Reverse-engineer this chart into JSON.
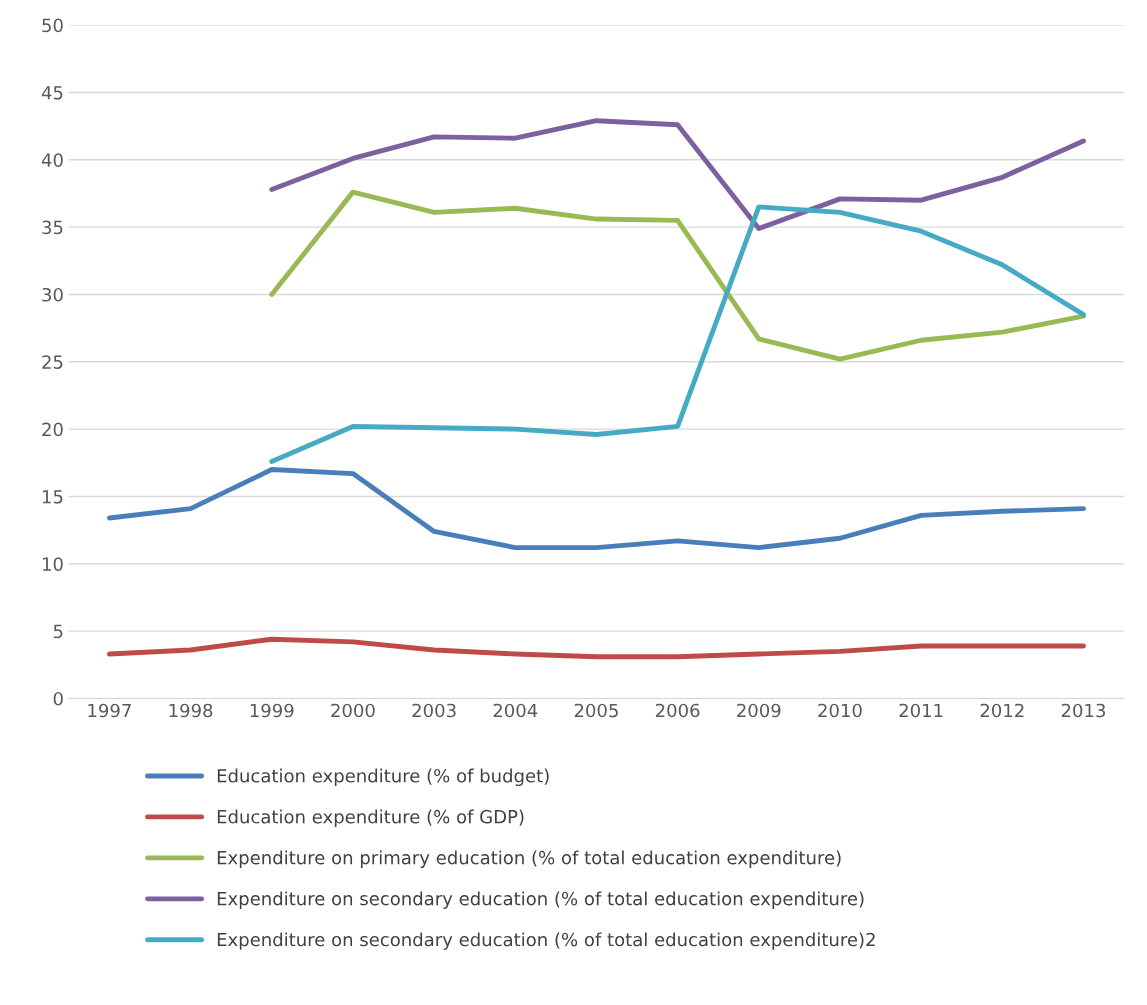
{
  "chart_data": {
    "type": "line",
    "categories": [
      "1997",
      "1998",
      "1999",
      "2000",
      "2003",
      "2004",
      "2005",
      "2006",
      "2009",
      "2010",
      "2011",
      "2012",
      "2013"
    ],
    "series": [
      {
        "name": "Education expenditure (% of budget)",
        "color": "#4a7ebb",
        "values": [
          13.4,
          14.1,
          17.0,
          16.7,
          12.4,
          11.2,
          11.2,
          11.7,
          11.2,
          11.9,
          13.6,
          13.9,
          14.1
        ]
      },
      {
        "name": "Education expenditure (% of GDP)",
        "color": "#be4b48",
        "values": [
          3.3,
          3.6,
          4.4,
          4.2,
          3.6,
          3.3,
          3.1,
          3.1,
          3.3,
          3.5,
          3.9,
          3.9,
          3.9
        ]
      },
      {
        "name": "Expenditure on primary education (% of total education expenditure)",
        "color": "#98b954",
        "values": [
          null,
          null,
          30.0,
          37.6,
          36.1,
          36.4,
          35.6,
          35.5,
          26.7,
          25.2,
          26.6,
          27.2,
          28.4
        ]
      },
      {
        "name": "Expenditure on secondary education (% of total education expenditure)",
        "color": "#7d60a0",
        "values": [
          null,
          null,
          37.8,
          40.1,
          41.7,
          41.6,
          42.9,
          42.6,
          34.9,
          37.1,
          37.0,
          38.7,
          41.4
        ]
      },
      {
        "name": "Expenditure on secondary education (% of total education expenditure)2",
        "color": "#46aac5",
        "values": [
          null,
          null,
          17.6,
          20.2,
          20.1,
          20.0,
          19.6,
          20.2,
          36.5,
          36.1,
          34.7,
          32.2,
          28.5
        ]
      }
    ],
    "ylim": [
      0,
      50
    ],
    "yticks": [
      0,
      5,
      10,
      15,
      20,
      25,
      30,
      35,
      40,
      45,
      50
    ],
    "grid": "y",
    "legend": "bottom",
    "marker": "none",
    "line_style": "solid"
  }
}
